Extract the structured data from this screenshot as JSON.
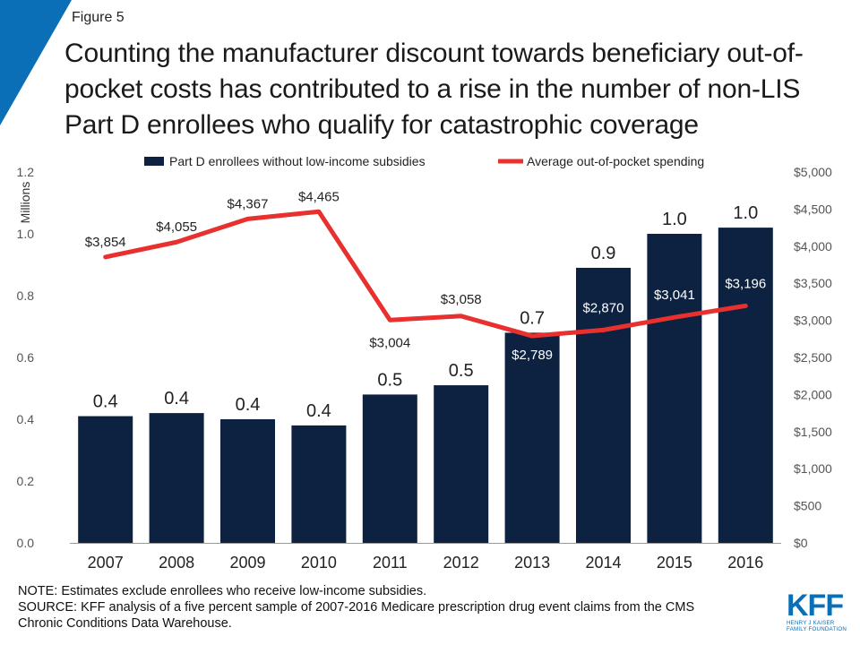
{
  "header": {
    "figure_label": "Figure 5",
    "title": "Counting the manufacturer discount towards beneficiary out-of-pocket costs has contributed to a rise in the number of non-LIS Part D enrollees who qualify for catastrophic coverage"
  },
  "colors": {
    "bar": "#0d2240",
    "line": "#e8302e",
    "accent_corner": "#0b6fb8",
    "logo": "#0b6fb8"
  },
  "chart_data": {
    "type": "bar",
    "categories": [
      "2007",
      "2008",
      "2009",
      "2010",
      "2011",
      "2012",
      "2013",
      "2014",
      "2015",
      "2016"
    ],
    "series": [
      {
        "name": "Part D enrollees without low-income subsidies",
        "type": "bar",
        "axis": "left",
        "values": [
          0.41,
          0.42,
          0.4,
          0.38,
          0.48,
          0.51,
          0.68,
          0.89,
          1.0,
          1.02
        ],
        "labels": [
          "0.4",
          "0.4",
          "0.4",
          "0.4",
          "0.5",
          "0.5",
          "0.7",
          "0.9",
          "1.0",
          "1.0"
        ]
      },
      {
        "name": "Average out-of-pocket spending",
        "type": "line",
        "axis": "right",
        "values": [
          3854,
          4055,
          4367,
          4465,
          3004,
          3058,
          2789,
          2870,
          3041,
          3196
        ],
        "labels": [
          "$3,854",
          "$4,055",
          "$4,367",
          "$4,465",
          "$3,004",
          "$3,058",
          "$2,789",
          "$2,870",
          "$3,041",
          "$3,196"
        ]
      }
    ],
    "ylabel": "Millions",
    "ylim": [
      0,
      1.2
    ],
    "yticks": [
      "0.0",
      "0.2",
      "0.4",
      "0.6",
      "0.8",
      "1.0",
      "1.2"
    ],
    "y2lim": [
      0,
      5000
    ],
    "y2ticks": [
      "$0",
      "$500",
      "$1,000",
      "$1,500",
      "$2,000",
      "$2,500",
      "$3,000",
      "$3,500",
      "$4,000",
      "$4,500",
      "$5,000"
    ],
    "legend_position": "top",
    "grid": false
  },
  "notes": {
    "note": "NOTE: Estimates exclude enrollees who receive low-income subsidies.",
    "source_line1": "SOURCE: KFF analysis of a five percent sample of 2007-2016 Medicare prescription drug event claims from the CMS",
    "source_line2": "Chronic Conditions Data Warehouse."
  },
  "logo": {
    "text": "KFF",
    "sub1": "Henry J Kaiser",
    "sub2": "Family Foundation"
  }
}
